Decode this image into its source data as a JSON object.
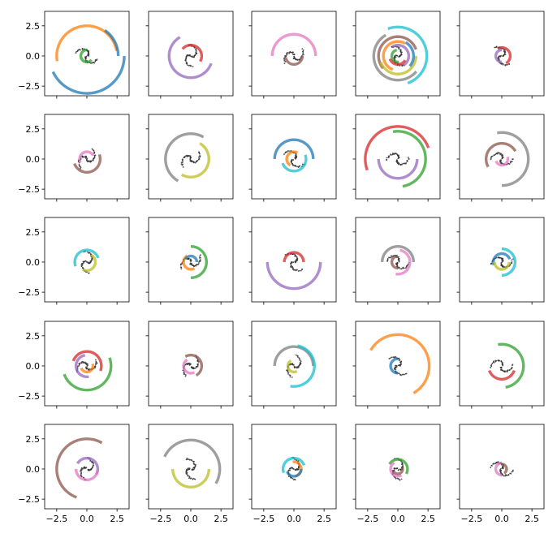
{
  "figure": {
    "rows": 5,
    "cols": 5,
    "shared_x_ticks": [
      "−2.5",
      "0.0",
      "2.5"
    ],
    "shared_y_ticks": [
      "2.5",
      "0.0",
      "−2.5"
    ]
  },
  "palette": {
    "blue": "#1f77b4",
    "orange": "#ff7f0e",
    "green": "#2ca02c",
    "red": "#d62728",
    "purple": "#9467bd",
    "brown": "#8c564b",
    "pink": "#e377c2",
    "gray": "#7f7f7f",
    "olive": "#bcbd22",
    "cyan": "#17becf",
    "galaxy_points": "#333333"
  },
  "chart_data": [
    {
      "type": "scatter",
      "panel": [
        0,
        0
      ],
      "xlim": [
        -3.5,
        3.5
      ],
      "ylim": [
        -3.3,
        3.7
      ],
      "arcs": [
        {
          "color": "orange",
          "r": 2.5,
          "start": 10,
          "end": 190
        },
        {
          "color": "blue",
          "r": 3.1,
          "start": 205,
          "end": 360
        },
        {
          "color": "blue",
          "r": 2.6,
          "start": 0,
          "end": 55
        },
        {
          "color": "green",
          "r": 0.5,
          "start": 90,
          "end": 320
        }
      ]
    },
    {
      "type": "scatter",
      "panel": [
        0,
        1
      ],
      "xlim": [
        -3.5,
        3.5
      ],
      "ylim": [
        -3.3,
        3.7
      ],
      "arcs": [
        {
          "color": "red",
          "r": 0.9,
          "start": -30,
          "end": 140
        },
        {
          "color": "purple",
          "r": 1.8,
          "start": 120,
          "end": 340
        }
      ]
    },
    {
      "type": "scatter",
      "panel": [
        0,
        2
      ],
      "xlim": [
        -3.5,
        3.5
      ],
      "ylim": [
        -3.3,
        3.7
      ],
      "arcs": [
        {
          "color": "pink",
          "r": 1.8,
          "start": 0,
          "end": 180
        },
        {
          "color": "brown",
          "r": 0.7,
          "start": 190,
          "end": 360
        }
      ]
    },
    {
      "type": "scatter",
      "panel": [
        0,
        3
      ],
      "xlim": [
        -3.5,
        3.5
      ],
      "ylim": [
        -3.3,
        3.7
      ],
      "arcs": [
        {
          "color": "cyan",
          "r": 2.4,
          "start": -70,
          "end": 110
        },
        {
          "color": "brown",
          "r": 1.6,
          "start": 20,
          "end": 220
        },
        {
          "color": "gray",
          "r": 2.0,
          "start": 120,
          "end": 320
        },
        {
          "color": "olive",
          "r": 1.5,
          "start": 200,
          "end": 360
        },
        {
          "color": "orange",
          "r": 1.2,
          "start": 60,
          "end": 250
        },
        {
          "color": "purple",
          "r": 0.9,
          "start": -60,
          "end": 120
        },
        {
          "color": "green",
          "r": 0.5,
          "start": 100,
          "end": 280
        },
        {
          "color": "blue",
          "r": 1.3,
          "start": -40,
          "end": 60
        },
        {
          "color": "red",
          "r": 0.7,
          "start": 200,
          "end": 330
        }
      ]
    },
    {
      "type": "scatter",
      "panel": [
        0,
        4
      ],
      "xlim": [
        -3.5,
        3.5
      ],
      "ylim": [
        -3.3,
        3.7
      ],
      "arcs": [
        {
          "color": "red",
          "r": 0.7,
          "start": -60,
          "end": 120
        },
        {
          "color": "purple",
          "r": 0.5,
          "start": 90,
          "end": 270
        }
      ]
    },
    {
      "type": "scatter",
      "panel": [
        1,
        0
      ],
      "xlim": [
        -3.5,
        3.5
      ],
      "ylim": [
        -3.3,
        3.7
      ],
      "arcs": [
        {
          "color": "pink",
          "r": 0.6,
          "start": 30,
          "end": 210
        },
        {
          "color": "brown",
          "r": 1.1,
          "start": 200,
          "end": 380
        }
      ]
    },
    {
      "type": "scatter",
      "panel": [
        1,
        1
      ],
      "xlim": [
        -3.5,
        3.5
      ],
      "ylim": [
        -3.3,
        3.7
      ],
      "arcs": [
        {
          "color": "gray",
          "r": 2.1,
          "start": 60,
          "end": 240
        },
        {
          "color": "olive",
          "r": 1.5,
          "start": 240,
          "end": 420
        }
      ]
    },
    {
      "type": "scatter",
      "panel": [
        1,
        2
      ],
      "xlim": [
        -3.5,
        3.5
      ],
      "ylim": [
        -3.3,
        3.7
      ],
      "arcs": [
        {
          "color": "blue",
          "r": 1.6,
          "start": 0,
          "end": 180
        },
        {
          "color": "cyan",
          "r": 1.0,
          "start": 200,
          "end": 380
        },
        {
          "color": "orange",
          "r": 0.6,
          "start": 60,
          "end": 240
        }
      ]
    },
    {
      "type": "scatter",
      "panel": [
        1,
        3
      ],
      "xlim": [
        -3.5,
        3.5
      ],
      "ylim": [
        -3.3,
        3.7
      ],
      "arcs": [
        {
          "color": "red",
          "r": 2.7,
          "start": 20,
          "end": 200
        },
        {
          "color": "green",
          "r": 2.3,
          "start": -80,
          "end": 100
        },
        {
          "color": "purple",
          "r": 1.6,
          "start": 180,
          "end": 360
        }
      ]
    },
    {
      "type": "scatter",
      "panel": [
        1,
        4
      ],
      "xlim": [
        -3.5,
        3.5
      ],
      "ylim": [
        -3.3,
        3.7
      ],
      "arcs": [
        {
          "color": "gray",
          "r": 2.2,
          "start": -90,
          "end": 100
        },
        {
          "color": "brown",
          "r": 1.3,
          "start": 30,
          "end": 210
        },
        {
          "color": "pink",
          "r": 0.5,
          "start": 200,
          "end": 380
        }
      ]
    },
    {
      "type": "scatter",
      "panel": [
        2,
        0
      ],
      "xlim": [
        -3.5,
        3.5
      ],
      "ylim": [
        -3.3,
        3.7
      ],
      "arcs": [
        {
          "color": "cyan",
          "r": 1.0,
          "start": 20,
          "end": 200
        },
        {
          "color": "olive",
          "r": 0.7,
          "start": 240,
          "end": 420
        }
      ]
    },
    {
      "type": "scatter",
      "panel": [
        2,
        1
      ],
      "xlim": [
        -3.5,
        3.5
      ],
      "ylim": [
        -3.3,
        3.7
      ],
      "arcs": [
        {
          "color": "green",
          "r": 1.3,
          "start": -90,
          "end": 90
        },
        {
          "color": "orange",
          "r": 0.6,
          "start": 120,
          "end": 300
        },
        {
          "color": "blue",
          "r": 0.5,
          "start": 0,
          "end": 150
        }
      ]
    },
    {
      "type": "scatter",
      "panel": [
        2,
        2
      ],
      "xlim": [
        -3.5,
        3.5
      ],
      "ylim": [
        -3.3,
        3.7
      ],
      "arcs": [
        {
          "color": "red",
          "r": 0.8,
          "start": 0,
          "end": 180
        },
        {
          "color": "purple",
          "r": 2.2,
          "start": 180,
          "end": 360
        }
      ]
    },
    {
      "type": "scatter",
      "panel": [
        2,
        3
      ],
      "xlim": [
        -3.5,
        3.5
      ],
      "ylim": [
        -3.3,
        3.7
      ],
      "arcs": [
        {
          "color": "gray",
          "r": 1.3,
          "start": 0,
          "end": 180
        },
        {
          "color": "pink",
          "r": 1.0,
          "start": -100,
          "end": 80
        },
        {
          "color": "brown",
          "r": 0.5,
          "start": 90,
          "end": 270
        }
      ]
    },
    {
      "type": "scatter",
      "panel": [
        2,
        4
      ],
      "xlim": [
        -3.5,
        3.5
      ],
      "ylim": [
        -3.3,
        3.7
      ],
      "arcs": [
        {
          "color": "cyan",
          "r": 1.1,
          "start": -90,
          "end": 90
        },
        {
          "color": "blue",
          "r": 0.7,
          "start": 20,
          "end": 200
        },
        {
          "color": "olive",
          "r": 0.6,
          "start": 180,
          "end": 360
        }
      ]
    },
    {
      "type": "scatter",
      "panel": [
        3,
        0
      ],
      "xlim": [
        -3.5,
        3.5
      ],
      "ylim": [
        -3.3,
        3.7
      ],
      "arcs": [
        {
          "color": "green",
          "r": 2.0,
          "start": 200,
          "end": 380
        },
        {
          "color": "red",
          "r": 1.2,
          "start": -20,
          "end": 160
        },
        {
          "color": "purple",
          "r": 0.9,
          "start": 100,
          "end": 280
        },
        {
          "color": "orange",
          "r": 0.5,
          "start": 200,
          "end": 380
        }
      ]
    },
    {
      "type": "scatter",
      "panel": [
        3,
        1
      ],
      "xlim": [
        -3.5,
        3.5
      ],
      "ylim": [
        -3.3,
        3.7
      ],
      "arcs": [
        {
          "color": "brown",
          "r": 0.9,
          "start": -60,
          "end": 120
        },
        {
          "color": "pink",
          "r": 0.6,
          "start": 120,
          "end": 300
        }
      ]
    },
    {
      "type": "scatter",
      "panel": [
        3,
        2
      ],
      "xlim": [
        -3.5,
        3.5
      ],
      "ylim": [
        -3.3,
        3.7
      ],
      "arcs": [
        {
          "color": "gray",
          "r": 1.6,
          "start": 0,
          "end": 180
        },
        {
          "color": "cyan",
          "r": 1.7,
          "start": -100,
          "end": 80
        },
        {
          "color": "olive",
          "r": 0.5,
          "start": 120,
          "end": 300
        }
      ]
    },
    {
      "type": "scatter",
      "panel": [
        3,
        3
      ],
      "xlim": [
        -3.5,
        3.5
      ],
      "ylim": [
        -3.3,
        3.7
      ],
      "arcs": [
        {
          "color": "orange",
          "r": 2.6,
          "start": -60,
          "end": 150
        },
        {
          "color": "blue",
          "r": 0.6,
          "start": 90,
          "end": 270
        }
      ]
    },
    {
      "type": "scatter",
      "panel": [
        3,
        4
      ],
      "xlim": [
        -3.5,
        3.5
      ],
      "ylim": [
        -3.3,
        3.7
      ],
      "arcs": [
        {
          "color": "green",
          "r": 1.8,
          "start": -80,
          "end": 100
        },
        {
          "color": "red",
          "r": 1.1,
          "start": 200,
          "end": 340
        }
      ]
    },
    {
      "type": "scatter",
      "panel": [
        4,
        0
      ],
      "xlim": [
        -3.5,
        3.5
      ],
      "ylim": [
        -3.3,
        3.7
      ],
      "arcs": [
        {
          "color": "brown",
          "r": 2.5,
          "start": 60,
          "end": 250
        },
        {
          "color": "purple",
          "r": 0.9,
          "start": -30,
          "end": 150
        },
        {
          "color": "pink",
          "r": 0.9,
          "start": 180,
          "end": 360
        }
      ]
    },
    {
      "type": "scatter",
      "panel": [
        4,
        1
      ],
      "xlim": [
        -3.5,
        3.5
      ],
      "ylim": [
        -3.3,
        3.7
      ],
      "arcs": [
        {
          "color": "gray",
          "r": 2.4,
          "start": -30,
          "end": 155
        },
        {
          "color": "olive",
          "r": 1.5,
          "start": 180,
          "end": 360
        }
      ]
    },
    {
      "type": "scatter",
      "panel": [
        4,
        2
      ],
      "xlim": [
        -3.5,
        3.5
      ],
      "ylim": [
        -3.3,
        3.7
      ],
      "arcs": [
        {
          "color": "cyan",
          "r": 0.9,
          "start": 20,
          "end": 200
        },
        {
          "color": "orange",
          "r": 0.6,
          "start": -80,
          "end": 100
        },
        {
          "color": "blue",
          "r": 0.6,
          "start": 200,
          "end": 360
        }
      ]
    },
    {
      "type": "scatter",
      "panel": [
        4,
        3
      ],
      "xlim": [
        -3.5,
        3.5
      ],
      "ylim": [
        -3.3,
        3.7
      ],
      "arcs": [
        {
          "color": "green",
          "r": 0.8,
          "start": -30,
          "end": 150
        },
        {
          "color": "pink",
          "r": 0.6,
          "start": 120,
          "end": 300
        },
        {
          "color": "brown",
          "r": 0.4,
          "start": 200,
          "end": 380
        }
      ]
    },
    {
      "type": "scatter",
      "panel": [
        4,
        4
      ],
      "xlim": [
        -3.5,
        3.5
      ],
      "ylim": [
        -3.3,
        3.7
      ],
      "arcs": [
        {
          "color": "pink",
          "r": 0.5,
          "start": 90,
          "end": 270
        },
        {
          "color": "brown",
          "r": 0.4,
          "start": -60,
          "end": 100
        }
      ]
    }
  ]
}
